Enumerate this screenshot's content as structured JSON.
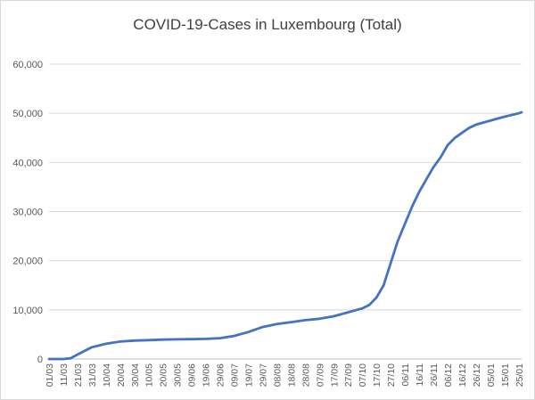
{
  "chart_data": {
    "type": "line",
    "title": "COVID-19-Cases in Luxembourg (Total)",
    "xlabel": "",
    "ylabel": "",
    "ylim": [
      0,
      60000
    ],
    "y_ticks": [
      "0",
      "10,000",
      "20,000",
      "30,000",
      "40,000",
      "50,000",
      "60,000"
    ],
    "y_tick_values": [
      0,
      10000,
      20000,
      30000,
      40000,
      50000,
      60000
    ],
    "x_tick_labels": [
      "01/03",
      "11/03",
      "21/03",
      "31/03",
      "10/04",
      "20/04",
      "30/04",
      "10/05",
      "20/05",
      "30/05",
      "09/06",
      "19/06",
      "29/06",
      "09/07",
      "19/07",
      "29/07",
      "08/08",
      "18/08",
      "28/08",
      "07/09",
      "17/09",
      "27/09",
      "07/10",
      "17/10",
      "27/10",
      "06/11",
      "16/11",
      "26/11",
      "06/12",
      "16/12",
      "26/12",
      "05/01",
      "15/01",
      "25/01"
    ],
    "grid": true,
    "legend": "none",
    "series": [
      {
        "color": "#4472c4",
        "points": [
          [
            "01/03",
            0
          ],
          [
            "11/03",
            0
          ],
          [
            "16/03",
            150
          ],
          [
            "21/03",
            900
          ],
          [
            "31/03",
            2400
          ],
          [
            "10/04",
            3100
          ],
          [
            "20/04",
            3550
          ],
          [
            "30/04",
            3750
          ],
          [
            "10/05",
            3850
          ],
          [
            "20/05",
            3950
          ],
          [
            "30/05",
            4000
          ],
          [
            "09/06",
            4050
          ],
          [
            "19/06",
            4100
          ],
          [
            "29/06",
            4250
          ],
          [
            "09/07",
            4700
          ],
          [
            "19/07",
            5500
          ],
          [
            "29/07",
            6500
          ],
          [
            "08/08",
            7100
          ],
          [
            "18/08",
            7500
          ],
          [
            "28/08",
            7900
          ],
          [
            "07/09",
            8200
          ],
          [
            "17/09",
            8700
          ],
          [
            "27/09",
            9500
          ],
          [
            "07/10",
            10300
          ],
          [
            "12/10",
            11000
          ],
          [
            "17/10",
            12500
          ],
          [
            "22/10",
            15000
          ],
          [
            "27/10",
            19500
          ],
          [
            "01/11",
            24000
          ],
          [
            "06/11",
            27500
          ],
          [
            "11/11",
            31000
          ],
          [
            "16/11",
            34000
          ],
          [
            "21/11",
            36500
          ],
          [
            "26/11",
            39000
          ],
          [
            "01/12",
            41000
          ],
          [
            "06/12",
            43500
          ],
          [
            "11/12",
            45000
          ],
          [
            "16/12",
            46000
          ],
          [
            "21/12",
            47000
          ],
          [
            "26/12",
            47700
          ],
          [
            "05/01",
            48500
          ],
          [
            "15/01",
            49300
          ],
          [
            "25/01",
            50000
          ],
          [
            "27/01",
            50200
          ]
        ]
      }
    ]
  }
}
